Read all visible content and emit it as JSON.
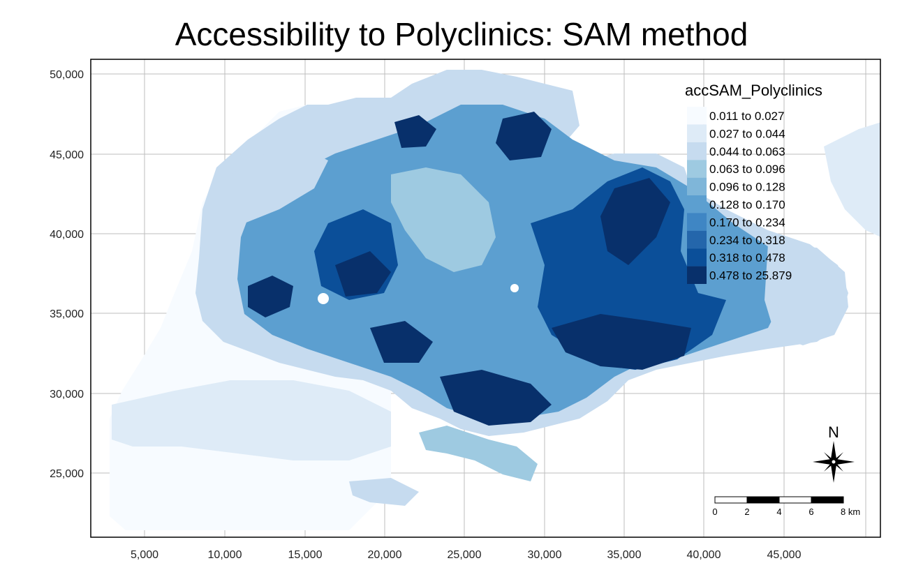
{
  "title": "Accessibility to Polyclinics: SAM method",
  "x_axis": {
    "ticks": [
      "5,000",
      "10,000",
      "15,000",
      "20,000",
      "25,000",
      "30,000",
      "35,000",
      "40,000",
      "45,000"
    ]
  },
  "y_axis": {
    "ticks": [
      "50,000",
      "45,000",
      "40,000",
      "35,000",
      "30,000",
      "25,000"
    ]
  },
  "legend": {
    "title": "accSAM_Polyclinics",
    "classes": [
      {
        "label": "0.011 to 0.027",
        "color": "#f7fbff"
      },
      {
        "label": "0.027 to 0.044",
        "color": "#deebf7"
      },
      {
        "label": "0.044 to 0.063",
        "color": "#c6dbef"
      },
      {
        "label": "0.063 to 0.096",
        "color": "#9ecae1"
      },
      {
        "label": "0.096 to 0.128",
        "color": "#7fb6d9"
      },
      {
        "label": "0.128 to 0.170",
        "color": "#5c9fd0"
      },
      {
        "label": "0.170 to 0.234",
        "color": "#3f86c4"
      },
      {
        "label": "0.234 to 0.318",
        "color": "#2466ab"
      },
      {
        "label": "0.318 to 0.478",
        "color": "#0b4f99"
      },
      {
        "label": "0.478 to 25.879",
        "color": "#08306b"
      }
    ]
  },
  "compass": {
    "label": "N"
  },
  "scale_bar": {
    "labels": [
      "0",
      "2",
      "4",
      "6",
      "8 km"
    ]
  },
  "colors": {
    "grid": "#bdbdbd",
    "frame": "#000000",
    "sea": "#ffffff"
  }
}
